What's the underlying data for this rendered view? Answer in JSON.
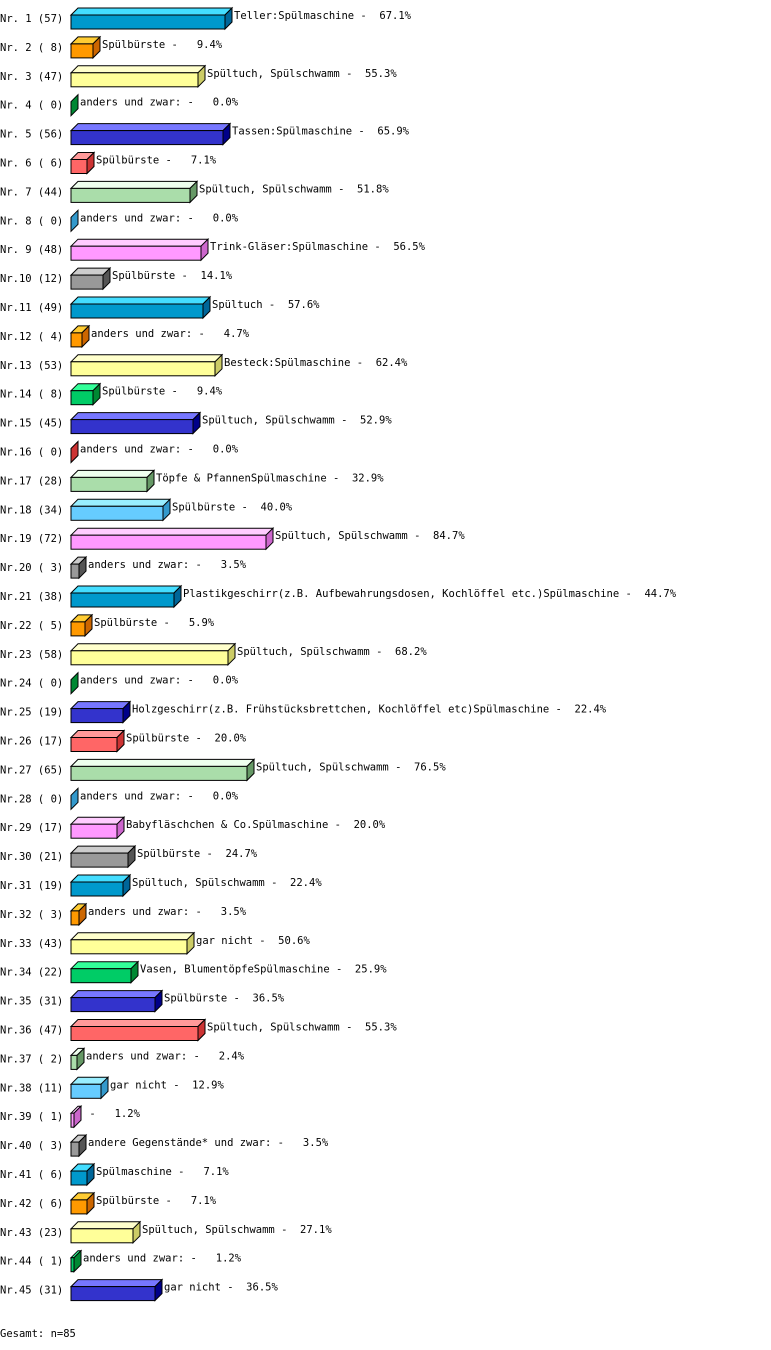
{
  "chart_data": {
    "type": "bar",
    "orientation": "horizontal",
    "style": "3d",
    "unit": "%",
    "xlim": [
      0,
      100
    ],
    "grid": false,
    "palette": [
      {
        "front": "#0099cc",
        "top": "#44ddff",
        "side": "#006699"
      },
      {
        "front": "#ff9900",
        "top": "#ffcc33",
        "side": "#cc6600"
      },
      {
        "front": "#ffff99",
        "top": "#ffffcc",
        "side": "#cccc66"
      },
      {
        "front": "#00cc66",
        "top": "#33ff99",
        "side": "#008833"
      },
      {
        "front": "#3333cc",
        "top": "#7777ff",
        "side": "#000088"
      },
      {
        "front": "#ff6666",
        "top": "#ff9999",
        "side": "#cc3333"
      },
      {
        "front": "#aaddaa",
        "top": "#eeffee",
        "side": "#669966"
      },
      {
        "front": "#66ccff",
        "top": "#99eeff",
        "side": "#3399cc"
      },
      {
        "front": "#ff99ff",
        "top": "#ffccff",
        "side": "#cc66cc"
      },
      {
        "front": "#999999",
        "top": "#cccccc",
        "side": "#555555"
      }
    ],
    "categories": [
      "Nr. 1 (57)",
      "Nr. 2 ( 8)",
      "Nr. 3 (47)",
      "Nr. 4 ( 0)",
      "Nr. 5 (56)",
      "Nr. 6 ( 6)",
      "Nr. 7 (44)",
      "Nr. 8 ( 0)",
      "Nr. 9 (48)",
      "Nr.10 (12)",
      "Nr.11 (49)",
      "Nr.12 ( 4)",
      "Nr.13 (53)",
      "Nr.14 ( 8)",
      "Nr.15 (45)",
      "Nr.16 ( 0)",
      "Nr.17 (28)",
      "Nr.18 (34)",
      "Nr.19 (72)",
      "Nr.20 ( 3)",
      "Nr.21 (38)",
      "Nr.22 ( 5)",
      "Nr.23 (58)",
      "Nr.24 ( 0)",
      "Nr.25 (19)",
      "Nr.26 (17)",
      "Nr.27 (65)",
      "Nr.28 ( 0)",
      "Nr.29 (17)",
      "Nr.30 (21)",
      "Nr.31 (19)",
      "Nr.32 ( 3)",
      "Nr.33 (43)",
      "Nr.34 (22)",
      "Nr.35 (31)",
      "Nr.36 (47)",
      "Nr.37 ( 2)",
      "Nr.38 (11)",
      "Nr.39 ( 1)",
      "Nr.40 ( 3)",
      "Nr.41 ( 6)",
      "Nr.42 ( 6)",
      "Nr.43 (23)",
      "Nr.44 ( 1)",
      "Nr.45 (31)"
    ],
    "values": [
      67.1,
      9.4,
      55.3,
      0.0,
      65.9,
      7.1,
      51.8,
      0.0,
      56.5,
      14.1,
      57.6,
      4.7,
      62.4,
      9.4,
      52.9,
      0.0,
      32.9,
      40.0,
      84.7,
      3.5,
      44.7,
      5.9,
      68.2,
      0.0,
      22.4,
      20.0,
      76.5,
      0.0,
      20.0,
      24.7,
      22.4,
      3.5,
      50.6,
      25.9,
      36.5,
      55.3,
      2.4,
      12.9,
      1.2,
      3.5,
      7.1,
      7.1,
      27.1,
      1.2,
      36.5
    ],
    "data_labels": [
      "Teller:Spülmaschine -  67.1%",
      "Spülbürste -   9.4%",
      "Spültuch, Spülschwamm -  55.3%",
      "anders und zwar: -   0.0%",
      "Tassen:Spülmaschine -  65.9%",
      "Spülbürste -   7.1%",
      "Spültuch, Spülschwamm -  51.8%",
      "anders und zwar: -   0.0%",
      "Trink-Gläser:Spülmaschine -  56.5%",
      "Spülbürste -  14.1%",
      "Spültuch -  57.6%",
      "anders und zwar: -   4.7%",
      "Besteck:Spülmaschine -  62.4%",
      "Spülbürste -   9.4%",
      "Spültuch, Spülschwamm -  52.9%",
      "anders und zwar: -   0.0%",
      "Töpfe & PfannenSpülmaschine -  32.9%",
      "Spülbürste -  40.0%",
      "Spültuch, Spülschwamm -  84.7%",
      "anders und zwar: -   3.5%",
      "Plastikgeschirr(z.B. Aufbewahrungsdosen, Kochlöffel etc.)Spülmaschine -  44.7%",
      "Spülbürste -   5.9%",
      "Spültuch, Spülschwamm -  68.2%",
      "anders und zwar: -   0.0%",
      "Holzgeschirr(z.B. Frühstücksbrettchen, Kochlöffel etc)Spülmaschine -  22.4%",
      "Spülbürste -  20.0%",
      "Spültuch, Spülschwamm -  76.5%",
      "anders und zwar: -   0.0%",
      "Babyfläschchen & Co.Spülmaschine -  20.0%",
      "Spülbürste -  24.7%",
      "Spültuch, Spülschwamm -  22.4%",
      "anders und zwar: -   3.5%",
      "gar nicht -  50.6%",
      "Vasen, BlumentöpfeSpülmaschine -  25.9%",
      "Spülbürste -  36.5%",
      "Spültuch, Spülschwamm -  55.3%",
      "anders und zwar: -   2.4%",
      "gar nicht -  12.9%",
      " -   1.2%",
      "andere Gegenstände* und zwar: -   3.5%",
      "Spülmaschine -   7.1%",
      "Spülbürste -   7.1%",
      "Spültuch, Spülschwamm -  27.1%",
      "anders und zwar: -   1.2%",
      "gar nicht -  36.5%"
    ]
  },
  "footer": {
    "total": "Gesamt: n=85"
  }
}
